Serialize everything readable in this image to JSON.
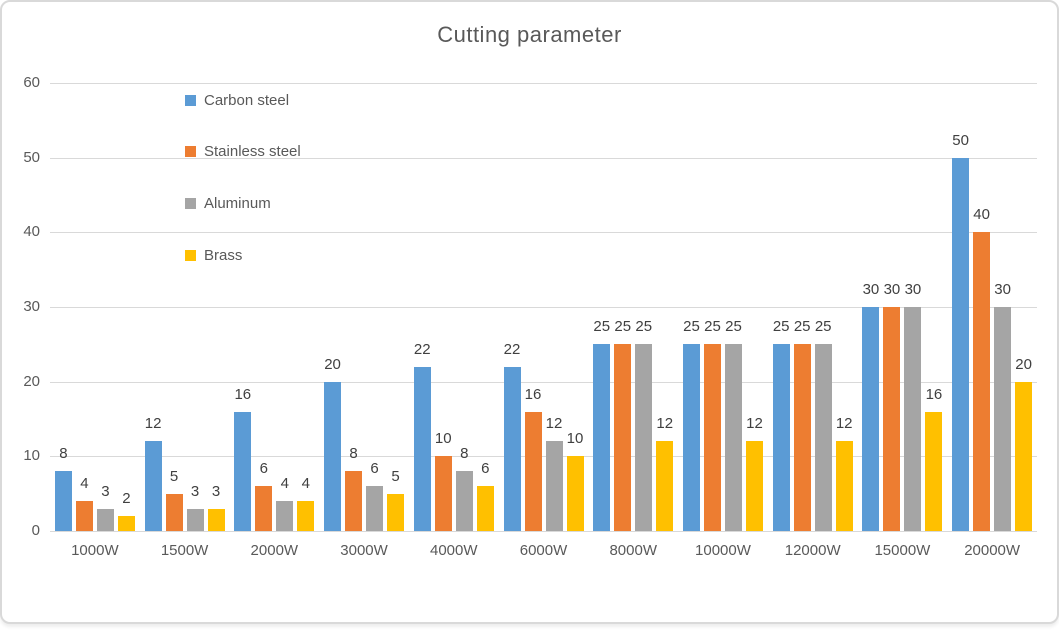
{
  "chart_data": {
    "type": "bar",
    "title": "Cutting parameter",
    "categories": [
      "1000W",
      "1500W",
      "2000W",
      "3000W",
      "4000W",
      "6000W",
      "8000W",
      "10000W",
      "12000W",
      "15000W",
      "20000W"
    ],
    "series": [
      {
        "name": "Carbon steel",
        "color": "#5B9BD5",
        "values": [
          8,
          12,
          16,
          20,
          22,
          22,
          25,
          25,
          25,
          30,
          50
        ]
      },
      {
        "name": "Stainless steel",
        "color": "#ED7D31",
        "values": [
          4,
          5,
          6,
          8,
          10,
          16,
          25,
          25,
          25,
          30,
          40
        ]
      },
      {
        "name": "Aluminum",
        "color": "#A5A5A5",
        "values": [
          3,
          3,
          4,
          6,
          8,
          12,
          25,
          25,
          25,
          30,
          30
        ]
      },
      {
        "name": "Brass",
        "color": "#FFC000",
        "values": [
          2,
          3,
          4,
          5,
          6,
          10,
          12,
          12,
          12,
          16,
          20
        ]
      }
    ],
    "xlabel": "",
    "ylabel": "",
    "ylim": [
      0,
      60
    ],
    "yticks": [
      0,
      10,
      20,
      30,
      40,
      50,
      60
    ],
    "grid": true,
    "data_labels": true,
    "legend_position": "top-left-vertical"
  },
  "colors": {
    "gridline": "#D9D9D9",
    "axis_text": "#595959",
    "title_text": "#595959",
    "data_label_text": "#404040",
    "card_border": "#D9D9D9",
    "background": "#FFFFFF"
  }
}
